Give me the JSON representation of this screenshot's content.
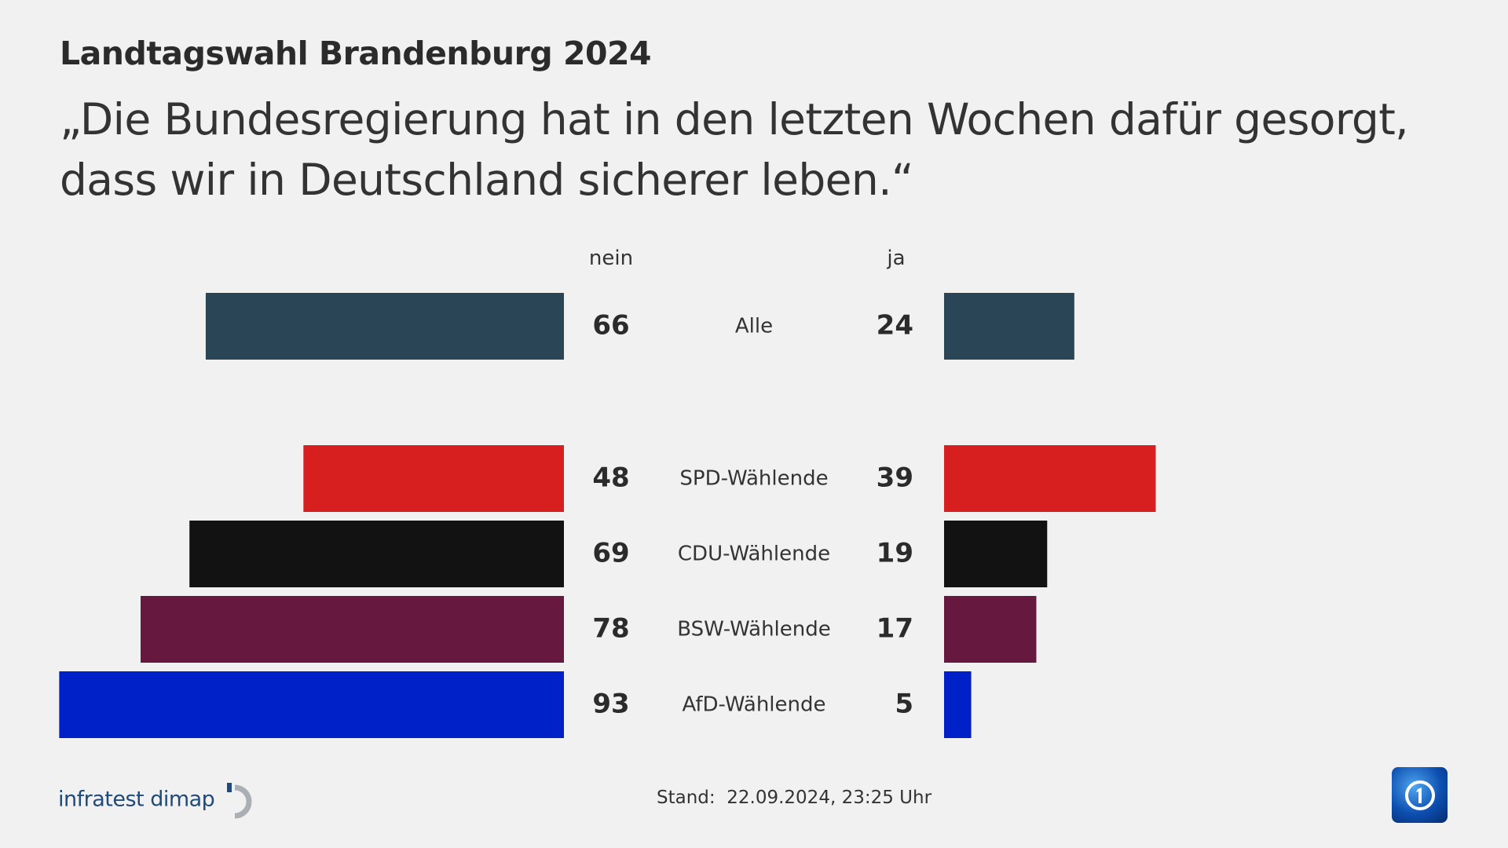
{
  "header": {
    "title": "Landtagswahl Brandenburg 2024",
    "subtitle": "„Die Bundesregierung hat in den letzten Wochen dafür gesorgt, dass wir in Deutschland sicherer leben.“"
  },
  "chart_data": {
    "type": "bar",
    "orientation": "diverging-horizontal",
    "categories": [
      "Alle",
      "SPD-Wählende",
      "CDU-Wählende",
      "BSW-Wählende",
      "AfD-Wählende"
    ],
    "series": [
      {
        "name": "nein",
        "values": [
          66,
          48,
          69,
          78,
          93
        ]
      },
      {
        "name": "ja",
        "values": [
          24,
          39,
          19,
          17,
          5
        ]
      }
    ],
    "colors": [
      "#2a4556",
      "#d71f1f",
      "#121212",
      "#66183f",
      "#0021c8"
    ],
    "grid": false
  },
  "footer": {
    "source_logo": "infratest dimap",
    "stand": "Stand:  22.09.2024, 23:25 Uhr",
    "broadcaster_logo": "ARD Das Erste"
  }
}
